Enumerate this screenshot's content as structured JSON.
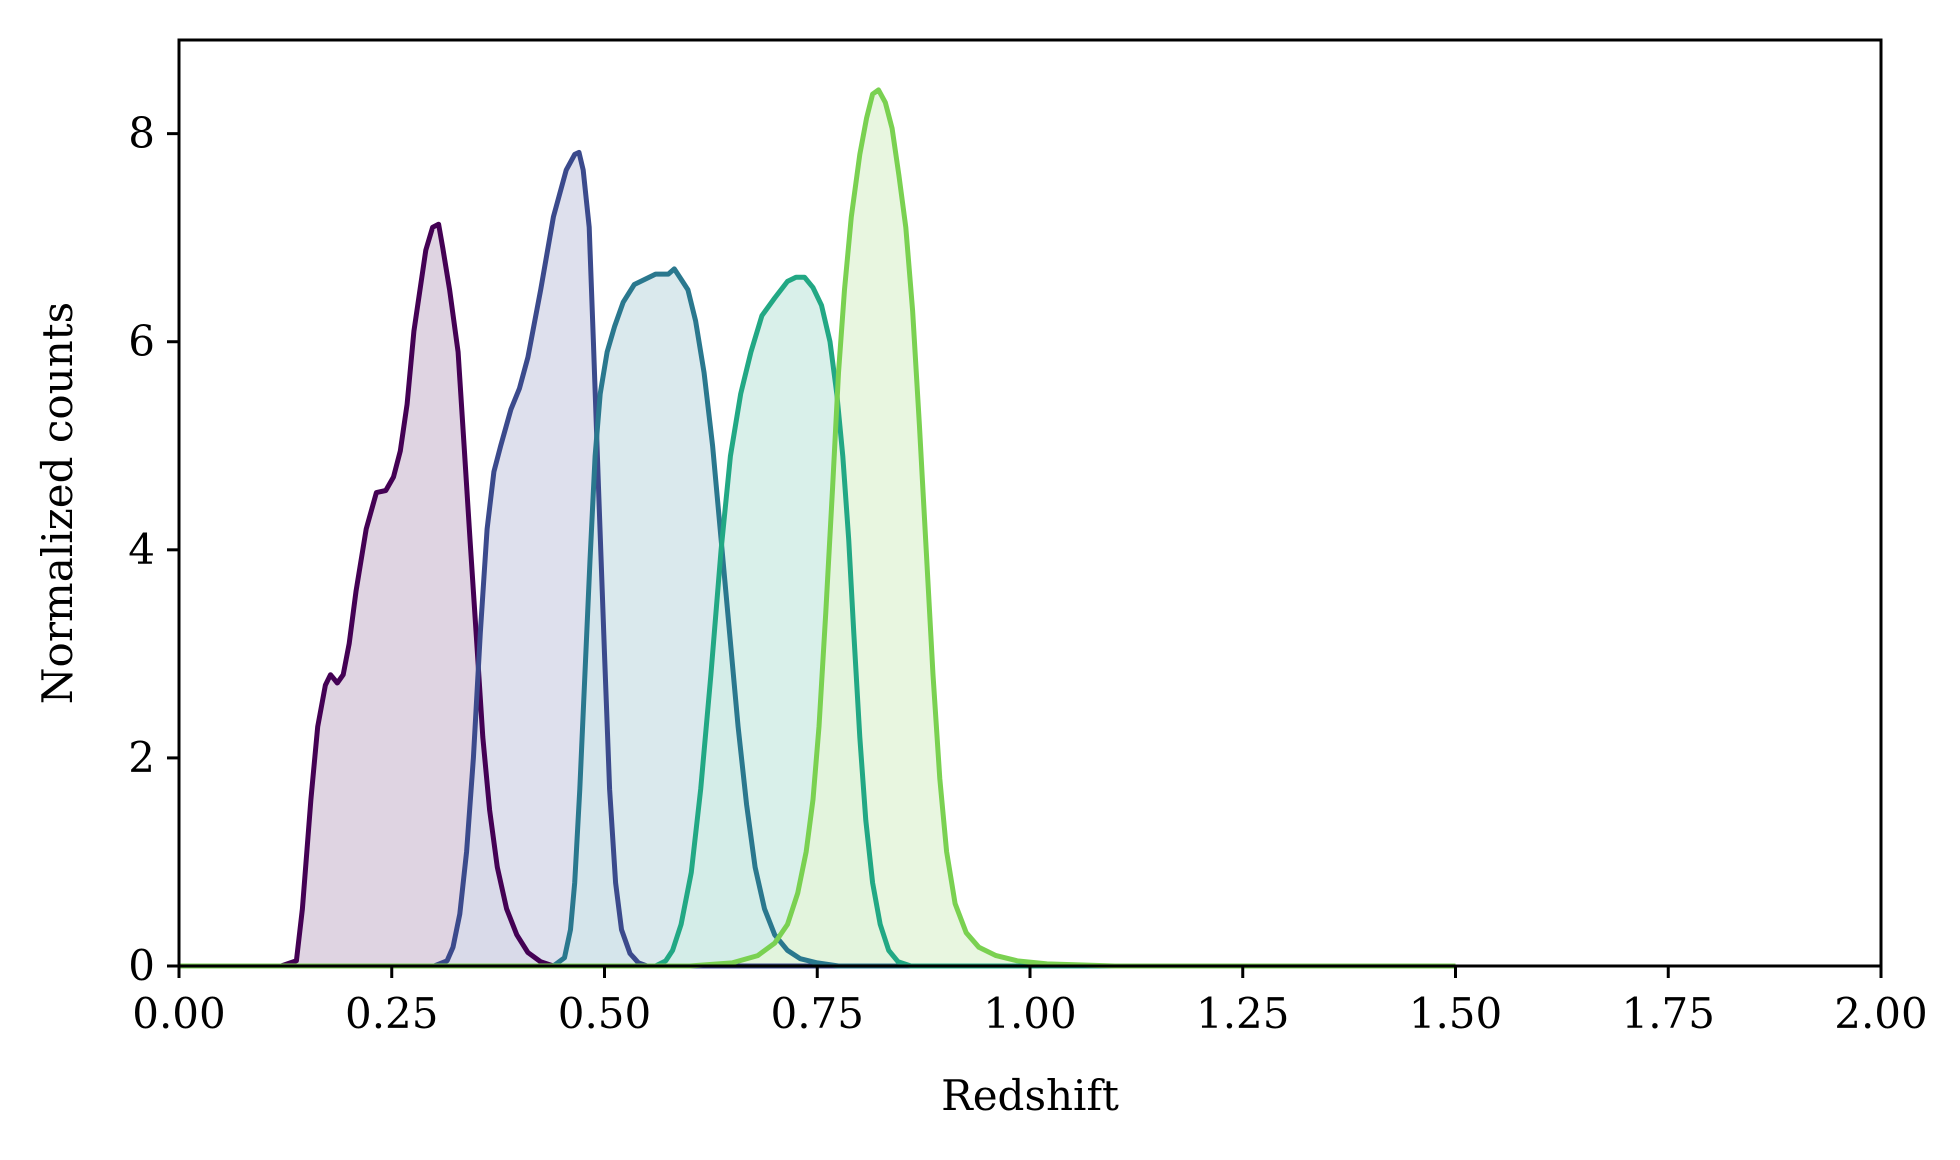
{
  "chart_data": {
    "type": "area",
    "xlabel": "Redshift",
    "ylabel": "Normalized counts",
    "xlim": [
      0,
      2
    ],
    "ylim": [
      0,
      8.9
    ],
    "x_ticks": [
      "0.00",
      "0.25",
      "0.50",
      "0.75",
      "1.00",
      "1.25",
      "1.50",
      "1.75",
      "2.00"
    ],
    "y_ticks": [
      "0",
      "2",
      "4",
      "6",
      "8"
    ],
    "grid": false,
    "legend": "none",
    "series": [
      {
        "color": "#440154",
        "fill": "#d9ccdd",
        "points": [
          [
            0.0,
            0.0
          ],
          [
            0.12,
            0.0
          ],
          [
            0.138,
            0.05
          ],
          [
            0.145,
            0.55
          ],
          [
            0.155,
            1.6
          ],
          [
            0.163,
            2.3
          ],
          [
            0.172,
            2.7
          ],
          [
            0.178,
            2.8
          ],
          [
            0.186,
            2.72
          ],
          [
            0.193,
            2.8
          ],
          [
            0.2,
            3.1
          ],
          [
            0.208,
            3.6
          ],
          [
            0.22,
            4.2
          ],
          [
            0.232,
            4.55
          ],
          [
            0.243,
            4.57
          ],
          [
            0.252,
            4.7
          ],
          [
            0.26,
            4.95
          ],
          [
            0.268,
            5.4
          ],
          [
            0.276,
            6.1
          ],
          [
            0.29,
            6.88
          ],
          [
            0.298,
            7.1
          ],
          [
            0.305,
            7.13
          ],
          [
            0.31,
            6.9
          ],
          [
            0.318,
            6.5
          ],
          [
            0.328,
            5.9
          ],
          [
            0.335,
            5.0
          ],
          [
            0.342,
            4.1
          ],
          [
            0.35,
            3.1
          ],
          [
            0.357,
            2.2
          ],
          [
            0.365,
            1.5
          ],
          [
            0.374,
            0.95
          ],
          [
            0.385,
            0.55
          ],
          [
            0.397,
            0.3
          ],
          [
            0.41,
            0.13
          ],
          [
            0.425,
            0.04
          ],
          [
            0.44,
            0.0
          ],
          [
            1.5,
            0.0
          ]
        ]
      },
      {
        "color": "#3b4a8c",
        "fill": "#d8daea",
        "points": [
          [
            0.0,
            0.0
          ],
          [
            0.3,
            0.0
          ],
          [
            0.315,
            0.05
          ],
          [
            0.322,
            0.18
          ],
          [
            0.33,
            0.5
          ],
          [
            0.338,
            1.1
          ],
          [
            0.346,
            2.0
          ],
          [
            0.354,
            3.2
          ],
          [
            0.362,
            4.2
          ],
          [
            0.37,
            4.75
          ],
          [
            0.378,
            5.0
          ],
          [
            0.39,
            5.35
          ],
          [
            0.4,
            5.55
          ],
          [
            0.41,
            5.85
          ],
          [
            0.425,
            6.5
          ],
          [
            0.44,
            7.2
          ],
          [
            0.455,
            7.65
          ],
          [
            0.465,
            7.8
          ],
          [
            0.47,
            7.82
          ],
          [
            0.475,
            7.65
          ],
          [
            0.482,
            7.1
          ],
          [
            0.487,
            6.0
          ],
          [
            0.493,
            4.6
          ],
          [
            0.5,
            3.0
          ],
          [
            0.506,
            1.7
          ],
          [
            0.513,
            0.8
          ],
          [
            0.52,
            0.35
          ],
          [
            0.53,
            0.12
          ],
          [
            0.54,
            0.03
          ],
          [
            0.55,
            0.0
          ],
          [
            1.5,
            0.0
          ]
        ]
      },
      {
        "color": "#2a788e",
        "fill": "#d4e5ea",
        "points": [
          [
            0.0,
            0.0
          ],
          [
            0.44,
            0.0
          ],
          [
            0.453,
            0.08
          ],
          [
            0.46,
            0.35
          ],
          [
            0.465,
            0.8
          ],
          [
            0.471,
            1.7
          ],
          [
            0.477,
            2.8
          ],
          [
            0.483,
            3.9
          ],
          [
            0.489,
            4.9
          ],
          [
            0.495,
            5.5
          ],
          [
            0.503,
            5.9
          ],
          [
            0.512,
            6.15
          ],
          [
            0.522,
            6.38
          ],
          [
            0.535,
            6.55
          ],
          [
            0.56,
            6.65
          ],
          [
            0.575,
            6.65
          ],
          [
            0.582,
            6.7
          ],
          [
            0.59,
            6.6
          ],
          [
            0.598,
            6.5
          ],
          [
            0.607,
            6.2
          ],
          [
            0.617,
            5.7
          ],
          [
            0.627,
            5.0
          ],
          [
            0.637,
            4.1
          ],
          [
            0.647,
            3.2
          ],
          [
            0.657,
            2.3
          ],
          [
            0.667,
            1.55
          ],
          [
            0.677,
            0.95
          ],
          [
            0.688,
            0.55
          ],
          [
            0.7,
            0.3
          ],
          [
            0.715,
            0.15
          ],
          [
            0.73,
            0.07
          ],
          [
            0.75,
            0.03
          ],
          [
            0.775,
            0.0
          ],
          [
            1.5,
            0.0
          ]
        ]
      },
      {
        "color": "#22a884",
        "fill": "#d2ede6",
        "points": [
          [
            0.0,
            0.0
          ],
          [
            0.56,
            0.0
          ],
          [
            0.572,
            0.05
          ],
          [
            0.58,
            0.15
          ],
          [
            0.59,
            0.4
          ],
          [
            0.602,
            0.9
          ],
          [
            0.613,
            1.7
          ],
          [
            0.625,
            2.8
          ],
          [
            0.637,
            4.0
          ],
          [
            0.648,
            4.9
          ],
          [
            0.66,
            5.5
          ],
          [
            0.672,
            5.9
          ],
          [
            0.685,
            6.25
          ],
          [
            0.7,
            6.42
          ],
          [
            0.715,
            6.58
          ],
          [
            0.725,
            6.62
          ],
          [
            0.735,
            6.62
          ],
          [
            0.745,
            6.52
          ],
          [
            0.755,
            6.35
          ],
          [
            0.765,
            6.0
          ],
          [
            0.773,
            5.5
          ],
          [
            0.78,
            4.9
          ],
          [
            0.787,
            4.1
          ],
          [
            0.793,
            3.2
          ],
          [
            0.8,
            2.2
          ],
          [
            0.807,
            1.4
          ],
          [
            0.815,
            0.8
          ],
          [
            0.824,
            0.4
          ],
          [
            0.834,
            0.15
          ],
          [
            0.845,
            0.04
          ],
          [
            0.86,
            0.0
          ],
          [
            1.5,
            0.0
          ]
        ]
      },
      {
        "color": "#7ad151",
        "fill": "#e4f4da",
        "points": [
          [
            0.0,
            0.0
          ],
          [
            0.6,
            0.0
          ],
          [
            0.65,
            0.03
          ],
          [
            0.68,
            0.1
          ],
          [
            0.7,
            0.22
          ],
          [
            0.715,
            0.4
          ],
          [
            0.727,
            0.7
          ],
          [
            0.737,
            1.1
          ],
          [
            0.745,
            1.6
          ],
          [
            0.752,
            2.3
          ],
          [
            0.76,
            3.4
          ],
          [
            0.768,
            4.6
          ],
          [
            0.775,
            5.7
          ],
          [
            0.782,
            6.5
          ],
          [
            0.79,
            7.2
          ],
          [
            0.8,
            7.8
          ],
          [
            0.808,
            8.15
          ],
          [
            0.815,
            8.38
          ],
          [
            0.822,
            8.42
          ],
          [
            0.83,
            8.3
          ],
          [
            0.838,
            8.05
          ],
          [
            0.846,
            7.6
          ],
          [
            0.854,
            7.1
          ],
          [
            0.862,
            6.3
          ],
          [
            0.87,
            5.2
          ],
          [
            0.878,
            4.0
          ],
          [
            0.886,
            2.8
          ],
          [
            0.894,
            1.8
          ],
          [
            0.902,
            1.1
          ],
          [
            0.912,
            0.6
          ],
          [
            0.925,
            0.32
          ],
          [
            0.94,
            0.18
          ],
          [
            0.96,
            0.1
          ],
          [
            0.985,
            0.05
          ],
          [
            1.02,
            0.02
          ],
          [
            1.1,
            0.0
          ],
          [
            1.5,
            0.0
          ]
        ]
      }
    ]
  }
}
